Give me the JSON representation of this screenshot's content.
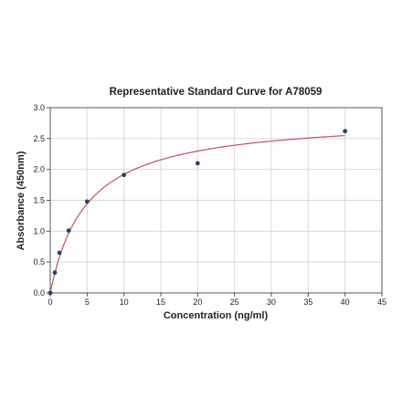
{
  "chart_data": {
    "type": "scatter",
    "title": "Representative Standard Curve for A78059",
    "xlabel": "Concentration (ng/ml)",
    "ylabel": "Absorbance (450nm)",
    "xlim": [
      0,
      45
    ],
    "ylim": [
      0,
      3.0
    ],
    "x_ticks": [
      0,
      5,
      10,
      15,
      20,
      25,
      30,
      35,
      40,
      45
    ],
    "y_ticks": [
      0.0,
      0.5,
      1.0,
      1.5,
      2.0,
      2.5,
      3.0
    ],
    "x_tick_labels": [
      "0",
      "5",
      "10",
      "15",
      "20",
      "25",
      "30",
      "35",
      "40",
      "45"
    ],
    "y_tick_labels": [
      "0.0",
      "0.5",
      "1.0",
      "1.5",
      "2.0",
      "2.5",
      "3.0"
    ],
    "grid": true,
    "series": [
      {
        "x": [
          0,
          0.625,
          1.25,
          2.5,
          5,
          10,
          20,
          40
        ],
        "y": [
          0.0,
          0.33,
          0.65,
          1.01,
          1.48,
          1.91,
          2.1,
          2.62
        ],
        "color": "#2e3f6e"
      }
    ],
    "fit_curve": {
      "model": "hyperbolic",
      "vmax": 2.86,
      "k": 4.9,
      "color": "#c0506a"
    }
  }
}
